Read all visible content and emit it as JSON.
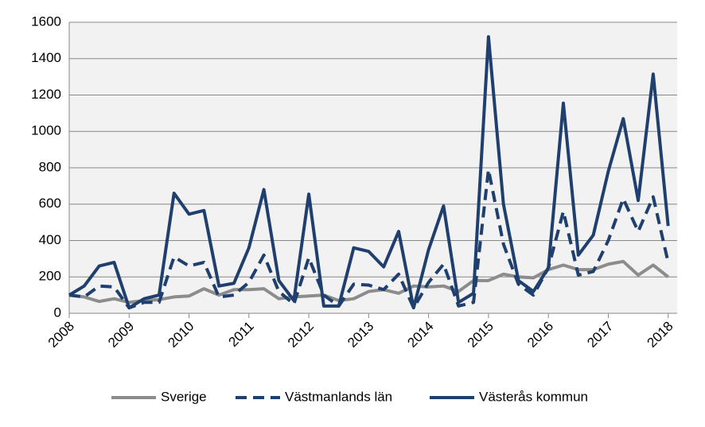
{
  "chart_data": {
    "type": "line",
    "x": [
      2008,
      2008.25,
      2008.5,
      2008.75,
      2009,
      2009.25,
      2009.5,
      2009.75,
      2010,
      2010.25,
      2010.5,
      2010.75,
      2011,
      2011.25,
      2011.5,
      2011.75,
      2012,
      2012.25,
      2012.5,
      2012.75,
      2013,
      2013.25,
      2013.5,
      2013.75,
      2014,
      2014.25,
      2014.5,
      2014.75,
      2015,
      2015.25,
      2015.5,
      2015.75,
      2016,
      2016.25,
      2016.5,
      2016.75,
      2017,
      2017.25,
      2017.5,
      2017.75,
      2018
    ],
    "series": [
      {
        "name": "Sverige",
        "color": "#8c8c8c",
        "dash": false,
        "values": [
          100,
          90,
          65,
          80,
          60,
          70,
          75,
          90,
          95,
          135,
          100,
          130,
          130,
          135,
          80,
          90,
          95,
          100,
          70,
          80,
          120,
          130,
          110,
          150,
          145,
          150,
          120,
          180,
          180,
          215,
          200,
          195,
          240,
          265,
          240,
          240,
          270,
          285,
          210,
          265,
          200
        ]
      },
      {
        "name": "Västmanlands län",
        "color": "#1f3f6e",
        "dash": true,
        "values": [
          100,
          90,
          150,
          145,
          30,
          60,
          60,
          310,
          260,
          280,
          90,
          100,
          170,
          320,
          120,
          50,
          305,
          100,
          40,
          160,
          155,
          130,
          215,
          30,
          170,
          270,
          40,
          60,
          790,
          380,
          160,
          100,
          250,
          560,
          210,
          230,
          400,
          630,
          450,
          640,
          280
        ]
      },
      {
        "name": "Västerås kommun",
        "color": "#1f3f6e",
        "dash": false,
        "values": [
          100,
          150,
          260,
          280,
          30,
          80,
          100,
          660,
          545,
          565,
          150,
          165,
          360,
          680,
          180,
          70,
          655,
          40,
          40,
          360,
          340,
          255,
          450,
          30,
          350,
          590,
          60,
          110,
          1520,
          600,
          180,
          120,
          250,
          1155,
          320,
          430,
          780,
          1070,
          620,
          1315,
          480
        ]
      }
    ],
    "xlim": [
      2008,
      2018.15
    ],
    "xticks": [
      2008,
      2009,
      2010,
      2011,
      2012,
      2013,
      2014,
      2015,
      2016,
      2017,
      2018
    ],
    "ylim": [
      0,
      1600
    ],
    "yticks": [
      0,
      200,
      400,
      600,
      800,
      1000,
      1200,
      1400,
      1600
    ],
    "grid": true,
    "legend": "bottom"
  }
}
